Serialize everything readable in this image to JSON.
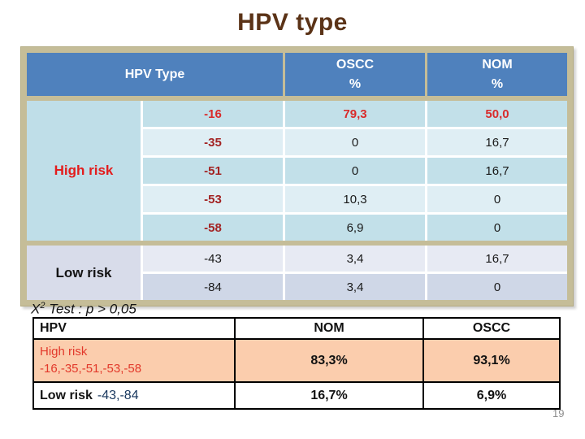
{
  "title": "HPV type",
  "page_number": "19",
  "main_table": {
    "header": {
      "hpv_type": "HPV Type",
      "oscc": "OSCC",
      "nom": "NOM",
      "percent_oscc": "%",
      "percent_nom": "%"
    },
    "groups": [
      {
        "label": "High risk",
        "rows": [
          {
            "type": "-16",
            "oscc": "79,3",
            "nom": "50,0"
          },
          {
            "type": "-35",
            "oscc": "0",
            "nom": "16,7"
          },
          {
            "type": "-51",
            "oscc": "0",
            "nom": "16,7"
          },
          {
            "type": "-53",
            "oscc": "10,3",
            "nom": "0"
          },
          {
            "type": "-58",
            "oscc": "6,9",
            "nom": "0"
          }
        ]
      },
      {
        "label": "Low risk",
        "rows": [
          {
            "type": "-43",
            "oscc": "3,4",
            "nom": "16,7"
          },
          {
            "type": "-84",
            "oscc": "3,4",
            "nom": "0"
          }
        ]
      }
    ]
  },
  "chi_note": {
    "prefix": "X",
    "sup": "2",
    "rest": " Test : p > 0,05"
  },
  "summary_table": {
    "headers": [
      "HPV",
      "NOM",
      "OSCC"
    ],
    "high_risk": {
      "label_line1": "High risk",
      "label_line2": "-16,-35,-51,-53,-58",
      "nom": "83,3%",
      "oscc": "93,1%"
    },
    "low_risk": {
      "label": "Low risk",
      "codes": "-43,-84",
      "nom": "16,7%",
      "oscc": "6,9%"
    }
  },
  "colors": {
    "title_brown": "#5b3317",
    "header_blue": "#4f81bd",
    "frame_tan": "#c5bd98",
    "high_risk_red": "#e31c1c",
    "type_label_red": "#a32323",
    "hot_row_red": "#d92b2b",
    "summary_red": "#e2392b",
    "peach_highlight": "#fbcdad",
    "navy_codes": "#17365d"
  }
}
